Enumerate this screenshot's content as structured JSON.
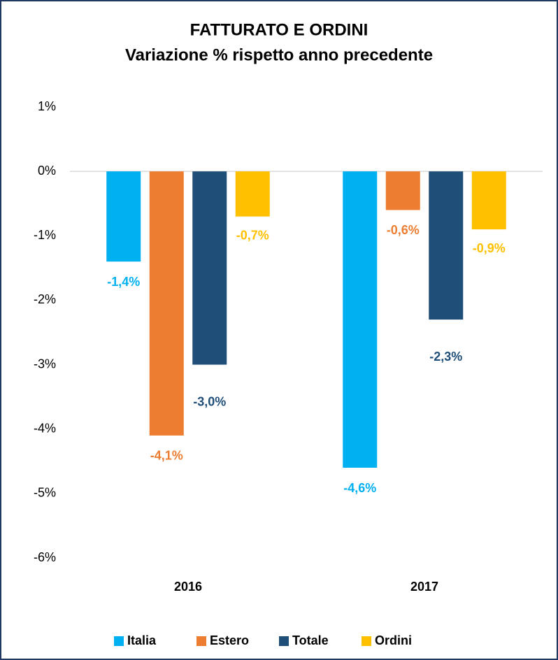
{
  "chart_data": {
    "type": "bar",
    "title": "FATTURATO E ORDINI",
    "subtitle": "Variazione % rispetto anno precedente",
    "categories": [
      "2016",
      "2017"
    ],
    "series": [
      {
        "name": "Italia",
        "color": "#00b0f0",
        "values": [
          -1.4,
          -4.6
        ],
        "value_labels": [
          "-1,4%",
          "-4,6%"
        ]
      },
      {
        "name": "Estero",
        "color": "#ed7d31",
        "values": [
          -4.1,
          -0.6
        ],
        "value_labels": [
          "-4,1%",
          "-0,6%"
        ]
      },
      {
        "name": "Totale",
        "color": "#1f4e79",
        "values": [
          -3.0,
          -2.3
        ],
        "value_labels": [
          "-3,0%",
          "-2,3%"
        ]
      },
      {
        "name": "Ordini",
        "color": "#ffc000",
        "values": [
          -0.7,
          -0.9
        ],
        "value_labels": [
          "-0,7%",
          "-0,9%"
        ]
      }
    ],
    "ylim": [
      -6,
      1
    ],
    "yticks": [
      {
        "value": 1,
        "label": "1%"
      },
      {
        "value": 0,
        "label": "0%"
      },
      {
        "value": -1,
        "label": "-1%"
      },
      {
        "value": -2,
        "label": "-2%"
      },
      {
        "value": -3,
        "label": "-3%"
      },
      {
        "value": -4,
        "label": "-4%"
      },
      {
        "value": -5,
        "label": "-5%"
      },
      {
        "value": -6,
        "label": "-6%"
      }
    ],
    "grid": false,
    "legend": "bottom"
  }
}
